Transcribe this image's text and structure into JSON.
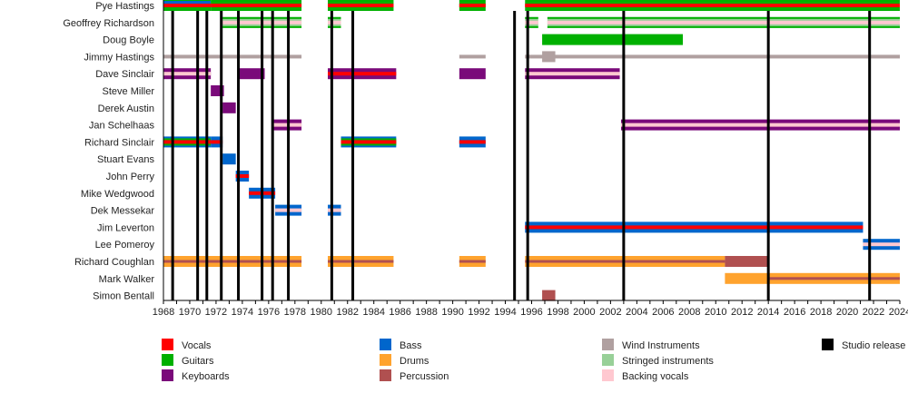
{
  "chart_data": {
    "type": "timeline",
    "x_range": [
      1968,
      2024
    ],
    "x_ticks": [
      1968,
      1970,
      1972,
      1974,
      1976,
      1978,
      1980,
      1982,
      1984,
      1986,
      1988,
      1990,
      1992,
      1994,
      1996,
      1998,
      2000,
      2002,
      2004,
      2006,
      2008,
      2010,
      2012,
      2014,
      2016,
      2018,
      2020,
      2022,
      2024
    ],
    "colors": {
      "vocals": "#ff0000",
      "guitars": "#00b000",
      "keyboards": "#7a0a7a",
      "bass": "#0066cc",
      "drums": "#ffa32e",
      "percussion": "#b05050",
      "wind": "#b0a0a0",
      "strings": "#98d098",
      "backing": "#ffc8d0",
      "release": "#000000"
    },
    "studio_releases": [
      1968.7,
      1970.6,
      1971.3,
      1972.4,
      1973.7,
      1975.5,
      1976.3,
      1977.5,
      1980.8,
      1982.4,
      1994.7,
      1995.7,
      2003.0,
      2014.0,
      2021.7
    ],
    "members": [
      {
        "name": "Pye Hastings",
        "segments": [
          {
            "from": 1968,
            "to": 1971.6,
            "style": "guitar_vocals_bass"
          },
          {
            "from": 1971.6,
            "to": 1978.5,
            "style": "guitar_vocals"
          },
          {
            "from": 1980.5,
            "to": 1985.5,
            "style": "guitar_vocals"
          },
          {
            "from": 1990.5,
            "to": 1992.5,
            "style": "guitar_vocals"
          },
          {
            "from": 1995.5,
            "to": 2024,
            "style": "guitar_vocals"
          }
        ]
      },
      {
        "name": "Geoffrey Richardson",
        "segments": [
          {
            "from": 1972.5,
            "to": 1978.5,
            "style": "strings_backing"
          },
          {
            "from": 1980.5,
            "to": 1981.5,
            "style": "strings_backing"
          },
          {
            "from": 1995.5,
            "to": 1996.5,
            "style": "strings_backing"
          },
          {
            "from": 1997.2,
            "to": 2024,
            "style": "strings_backing"
          }
        ]
      },
      {
        "name": "Doug Boyle",
        "segments": [
          {
            "from": 1996.8,
            "to": 2007.5,
            "style": "guitar"
          }
        ]
      },
      {
        "name": "Jimmy Hastings",
        "segments": [
          {
            "from": 1968,
            "to": 1978.5,
            "style": "wind_thin"
          },
          {
            "from": 1990.5,
            "to": 1992.5,
            "style": "wind_thin"
          },
          {
            "from": 1995.5,
            "to": 2024,
            "style": "wind_thin"
          },
          {
            "from": 1996.8,
            "to": 1997.8,
            "style": "wind"
          }
        ]
      },
      {
        "name": "Dave Sinclair",
        "segments": [
          {
            "from": 1968,
            "to": 1971.6,
            "style": "keys_backing"
          },
          {
            "from": 1973.7,
            "to": 1975.7,
            "style": "keys"
          },
          {
            "from": 1980.5,
            "to": 1985.7,
            "style": "keys_vocals"
          },
          {
            "from": 1990.5,
            "to": 1992.5,
            "style": "keys"
          },
          {
            "from": 1995.5,
            "to": 2002.7,
            "style": "keys_backing"
          }
        ]
      },
      {
        "name": "Steve Miller",
        "segments": [
          {
            "from": 1971.6,
            "to": 1972.6,
            "style": "keys"
          }
        ]
      },
      {
        "name": "Derek Austin",
        "segments": [
          {
            "from": 1972.5,
            "to": 1973.5,
            "style": "keys"
          }
        ]
      },
      {
        "name": "Jan Schelhaas",
        "segments": [
          {
            "from": 1976.3,
            "to": 1978.5,
            "style": "keys_backing"
          },
          {
            "from": 2002.8,
            "to": 2024,
            "style": "keys_backing"
          }
        ]
      },
      {
        "name": "Richard Sinclair",
        "segments": [
          {
            "from": 1968,
            "to": 1971.6,
            "style": "bass_guitar_vocals"
          },
          {
            "from": 1971.6,
            "to": 1972.5,
            "style": "bass_vocals"
          },
          {
            "from": 1981.5,
            "to": 1985.7,
            "style": "bass_guitar_vocals"
          },
          {
            "from": 1990.5,
            "to": 1992.5,
            "style": "bass_vocals"
          }
        ]
      },
      {
        "name": "Stuart Evans",
        "segments": [
          {
            "from": 1972.5,
            "to": 1973.5,
            "style": "bass"
          }
        ]
      },
      {
        "name": "John Perry",
        "segments": [
          {
            "from": 1973.5,
            "to": 1974.5,
            "style": "bass_vocals"
          }
        ]
      },
      {
        "name": "Mike Wedgwood",
        "segments": [
          {
            "from": 1974.5,
            "to": 1976.5,
            "style": "bass_vocals"
          }
        ]
      },
      {
        "name": "Dek Messekar",
        "segments": [
          {
            "from": 1976.5,
            "to": 1978.5,
            "style": "bass_backing"
          },
          {
            "from": 1980.5,
            "to": 1981.5,
            "style": "bass_backing"
          }
        ]
      },
      {
        "name": "Jim Leverton",
        "segments": [
          {
            "from": 1995.5,
            "to": 2021.2,
            "style": "bass_vocals"
          }
        ]
      },
      {
        "name": "Lee Pomeroy",
        "segments": [
          {
            "from": 2021.2,
            "to": 2024,
            "style": "bass_backing"
          }
        ]
      },
      {
        "name": "Richard Coughlan",
        "segments": [
          {
            "from": 1968,
            "to": 1978.5,
            "style": "drums_perc"
          },
          {
            "from": 1980.5,
            "to": 1985.5,
            "style": "drums_perc"
          },
          {
            "from": 1990.5,
            "to": 1992.5,
            "style": "drums_perc"
          },
          {
            "from": 1995.5,
            "to": 2010.7,
            "style": "drums_perc"
          },
          {
            "from": 2010.7,
            "to": 2014.0,
            "style": "perc"
          }
        ]
      },
      {
        "name": "Mark Walker",
        "segments": [
          {
            "from": 2010.7,
            "to": 2014.0,
            "style": "drums"
          },
          {
            "from": 2014.0,
            "to": 2024,
            "style": "drums_perc"
          }
        ]
      },
      {
        "name": "Simon Bentall",
        "segments": [
          {
            "from": 1996.8,
            "to": 1997.8,
            "style": "perc"
          }
        ]
      }
    ],
    "legend": [
      {
        "label": "Vocals",
        "color": "#ff0000"
      },
      {
        "label": "Guitars",
        "color": "#00b000"
      },
      {
        "label": "Keyboards",
        "color": "#7a0a7a"
      },
      {
        "label": "Bass",
        "color": "#0066cc"
      },
      {
        "label": "Drums",
        "color": "#ffa32e"
      },
      {
        "label": "Percussion",
        "color": "#b05050"
      },
      {
        "label": "Wind Instruments",
        "color": "#b0a0a0"
      },
      {
        "label": "Stringed instruments",
        "color": "#98d098"
      },
      {
        "label": "Backing vocals",
        "color": "#ffc8d0"
      },
      {
        "label": "Studio release",
        "color": "#000000"
      }
    ]
  }
}
